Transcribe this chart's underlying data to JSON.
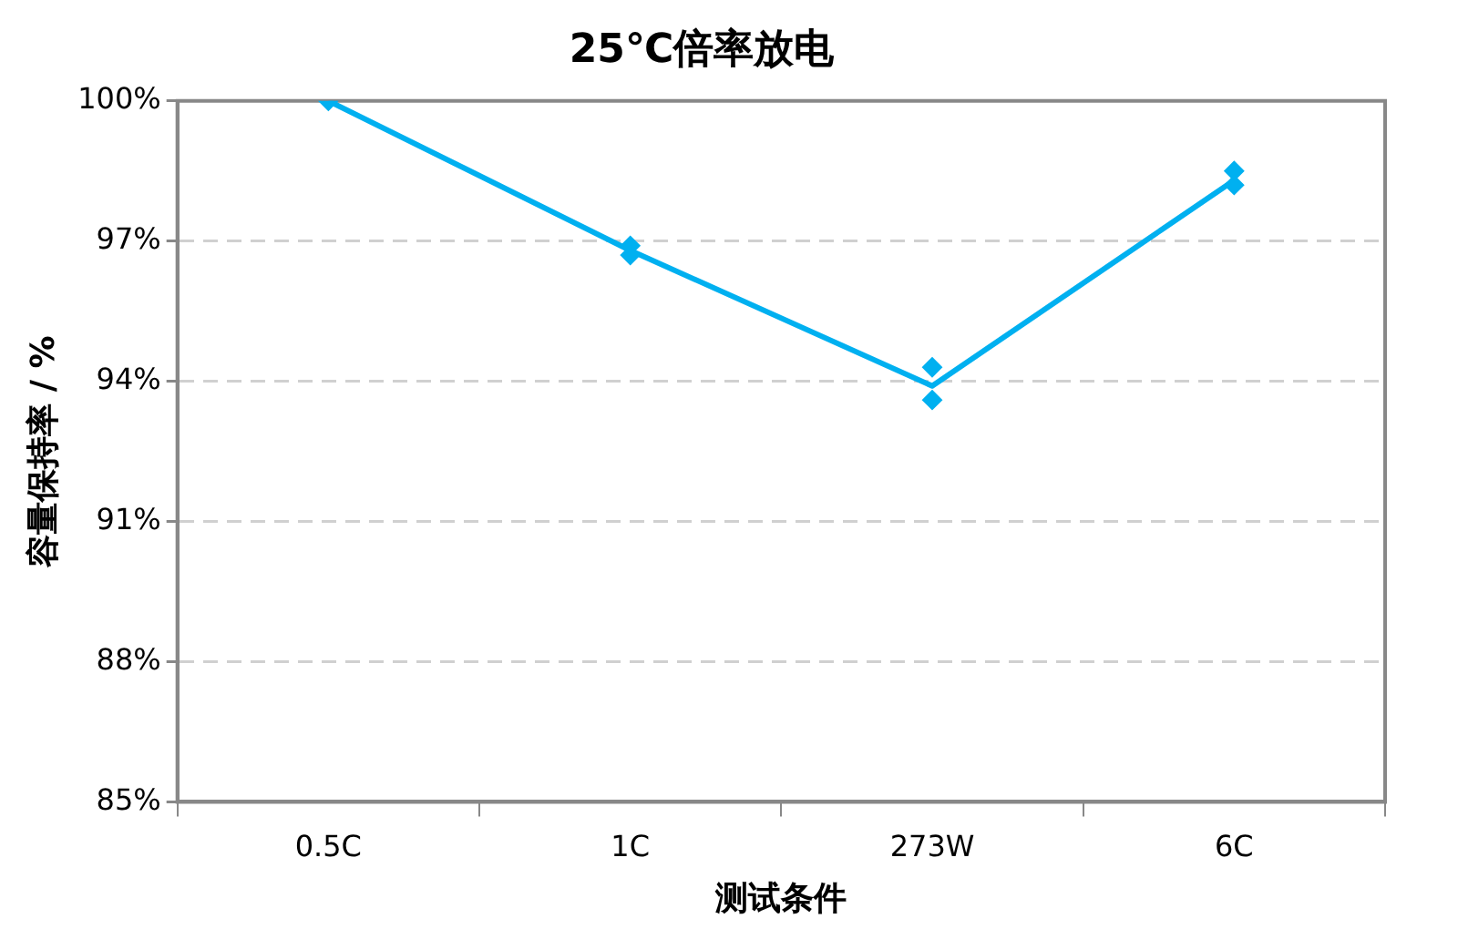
{
  "chart_data": {
    "type": "line",
    "title": "25℃倍率放电",
    "xlabel": "测试条件",
    "ylabel": "容量保持率 / %",
    "categories": [
      "0.5C",
      "1C",
      "273W",
      "6C"
    ],
    "series": [
      {
        "color": "#00b0f0",
        "values": [
          100,
          96.8,
          93.9,
          98.3
        ],
        "marker": "none"
      },
      {
        "type": "scatter",
        "color": "#00b0f0",
        "x": [
          "0.5C",
          "1C",
          "1C",
          "273W",
          "273W",
          "6C",
          "6C"
        ],
        "values": [
          100,
          96.9,
          96.7,
          94.3,
          93.6,
          98.5,
          98.2
        ]
      }
    ],
    "ylim": [
      85,
      100
    ],
    "yticks": [
      {
        "value": 85,
        "label": "85%"
      },
      {
        "value": 88,
        "label": "88%"
      },
      {
        "value": 91,
        "label": "91%"
      },
      {
        "value": 94,
        "label": "94%"
      },
      {
        "value": 97,
        "label": "97%"
      },
      {
        "value": 100,
        "label": "100%"
      }
    ],
    "grid": "y",
    "legend": false,
    "marker": "diamond",
    "line_style": "solid"
  }
}
